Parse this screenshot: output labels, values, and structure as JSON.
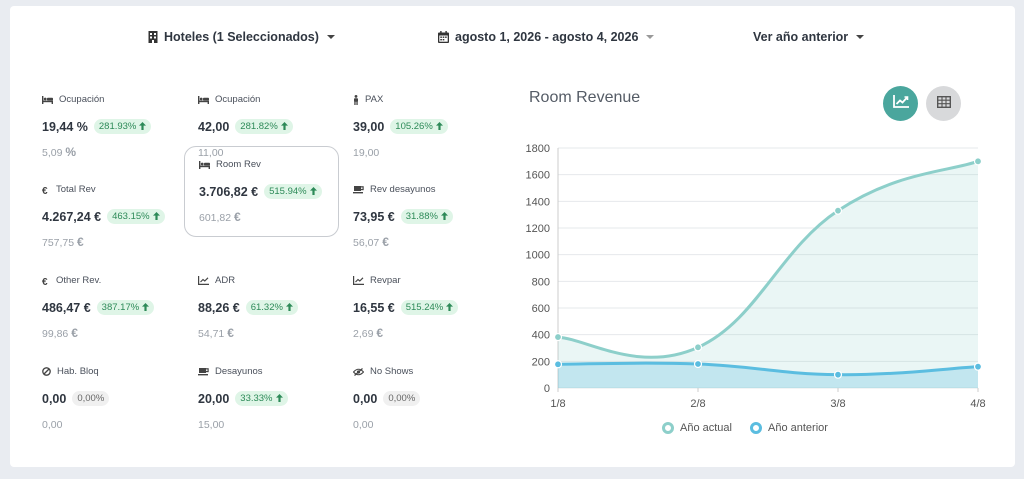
{
  "filters": {
    "hotels": "Hoteles (1 Seleccionados)",
    "date_range": "agosto 1, 2026 - agosto 4, 2026",
    "compare": "Ver año anterior"
  },
  "metrics": [
    {
      "label": "Ocupación",
      "value": "19,44 %",
      "change": "281.93%",
      "trend": "up",
      "previous": "5,09",
      "previous_unit": "%",
      "icon": "bed-icon"
    },
    {
      "label": "Ocupación",
      "value": "42,00",
      "change": "281.82%",
      "trend": "up",
      "previous": "11,00",
      "previous_unit": "",
      "icon": "bed-icon"
    },
    {
      "label": "PAX",
      "value": "39,00",
      "change": "105.26%",
      "trend": "up",
      "previous": "19,00",
      "previous_unit": "",
      "icon": "person-icon"
    },
    {
      "label": "Total Rev",
      "value": "4.267,24 €",
      "change": "463.15%",
      "trend": "up",
      "previous": "757,75",
      "previous_unit": "€",
      "icon": "euro-icon"
    },
    {
      "label": "Room Rev",
      "value": "3.706,82 €",
      "change": "515.94%",
      "trend": "up",
      "previous": "601,82",
      "previous_unit": "€",
      "icon": "bed-icon",
      "selected": true
    },
    {
      "label": "Rev desayunos",
      "value": "73,95 €",
      "change": "31.88%",
      "trend": "up",
      "previous": "56,07",
      "previous_unit": "€",
      "icon": "coffee-icon"
    },
    {
      "label": "Other Rev.",
      "value": "486,47 €",
      "change": "387.17%",
      "trend": "up",
      "previous": "99,86",
      "previous_unit": "€",
      "icon": "euro-icon"
    },
    {
      "label": "ADR",
      "value": "88,26 €",
      "change": "61.32%",
      "trend": "up",
      "previous": "54,71",
      "previous_unit": "€",
      "icon": "line-chart-icon"
    },
    {
      "label": "Revpar",
      "value": "16,55 €",
      "change": "515.24%",
      "trend": "up",
      "previous": "2,69",
      "previous_unit": "€",
      "icon": "line-chart-icon"
    },
    {
      "label": "Hab. Bloq",
      "value": "0,00",
      "change": "0,00%",
      "trend": "flat",
      "previous": "0,00",
      "previous_unit": "",
      "icon": "ban-icon"
    },
    {
      "label": "Desayunos",
      "value": "20,00",
      "change": "33.33%",
      "trend": "up",
      "previous": "15,00",
      "previous_unit": "",
      "icon": "coffee-icon"
    },
    {
      "label": "No Shows",
      "value": "0,00",
      "change": "0,00%",
      "trend": "flat",
      "previous": "0,00",
      "previous_unit": "",
      "icon": "eye-slash-icon"
    }
  ],
  "chart_view_buttons": {
    "line": "line-chart-icon",
    "table": "table-icon",
    "active": "line"
  },
  "colors": {
    "accent": "#4aa69d",
    "current_series": "#8dcfca",
    "previous_series": "#5bbde0",
    "badge_up_bg": "#dff5e7",
    "badge_up_text": "#2d8a58"
  },
  "chart_data": {
    "type": "area",
    "title": "Room Revenue",
    "categories": [
      "1/8",
      "2/8",
      "3/8",
      "4/8"
    ],
    "series": [
      {
        "name": "Año actual",
        "values": [
          382,
          305,
          1330,
          1700
        ]
      },
      {
        "name": "Año anterior",
        "values": [
          178,
          180,
          100,
          160
        ]
      }
    ],
    "ylim": [
      0,
      1800
    ],
    "yticks": [
      0,
      200,
      400,
      600,
      800,
      1000,
      1200,
      1400,
      1600,
      1800
    ],
    "grid": true,
    "legend": "bottom"
  }
}
